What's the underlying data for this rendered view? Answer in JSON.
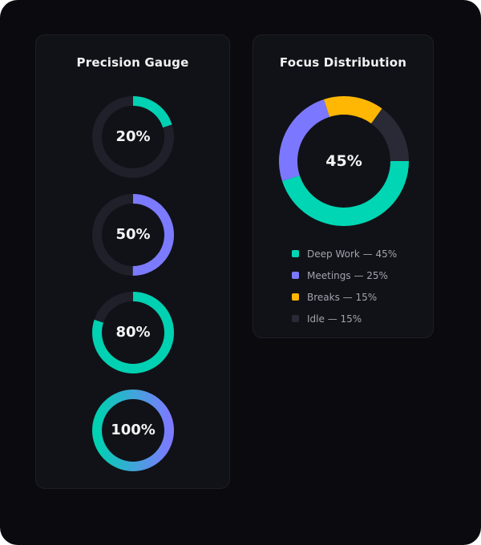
{
  "gauge_panel": {
    "title": "Precision Gauge",
    "gauges": [
      {
        "label": "20%",
        "value": 20,
        "color": "#00d1b2"
      },
      {
        "label": "50%",
        "value": 50,
        "color": "#7c7bff"
      },
      {
        "label": "80%",
        "value": 80,
        "color": "#00d1b2"
      },
      {
        "label": "100%",
        "value": 100,
        "gradient": [
          "#00d1b2",
          "#7c7bff"
        ]
      }
    ],
    "track_color": "#1f2029"
  },
  "distribution_panel": {
    "title": "Focus Distribution",
    "center_label": "45%",
    "legend": [
      {
        "label": "Deep Work — 45%",
        "color": "#00d6b4"
      },
      {
        "label": "Meetings — 25%",
        "color": "#7b78ff"
      },
      {
        "label": "Breaks — 15%",
        "color": "#ffb703"
      },
      {
        "label": "Idle — 15%",
        "color": "#2a2a36"
      }
    ]
  },
  "chart_data": [
    {
      "type": "radial-gauge",
      "title": "Precision Gauge",
      "values": [
        20,
        50,
        80,
        100
      ],
      "unit": "%"
    },
    {
      "type": "pie",
      "title": "Focus Distribution",
      "categories": [
        "Deep Work",
        "Meetings",
        "Breaks",
        "Idle"
      ],
      "values": [
        45,
        25,
        15,
        15
      ],
      "colors": [
        "#00d6b4",
        "#7b78ff",
        "#ffb703",
        "#2a2a36"
      ],
      "center_label": "45%"
    }
  ]
}
